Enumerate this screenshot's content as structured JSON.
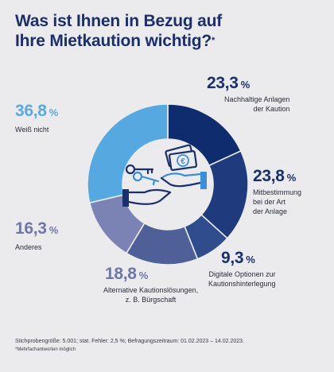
{
  "header": {
    "title_line1": "Was ist Ihnen in Bezug auf",
    "title_line2": "Ihre Mietkaution wichtig?",
    "title_mark": "*"
  },
  "chart_data": {
    "type": "pie",
    "donut": true,
    "categories": [
      "Nachhaltige Anlagen der Kaution",
      "Mitbestimmung bei der Art der Anlage",
      "Digitale Optionen zur Kautionshinterlegung",
      "Alternative Kautionslösungen, z. B. Bürgschaft",
      "Anderes",
      "Weiß nicht"
    ],
    "values": [
      23.3,
      23.8,
      9.3,
      18.8,
      16.3,
      36.8
    ],
    "colors": [
      "#0f2c6e",
      "#1f3b7d",
      "#2f4d8c",
      "#4f5f98",
      "#7a83b4",
      "#56a9e0"
    ],
    "unit": "%",
    "multiple_answers": true
  },
  "labels": [
    {
      "value": "23,3",
      "sign": "%",
      "desc": [
        "Nachhaltige Anlagen",
        "der Kaution"
      ]
    },
    {
      "value": "23,8",
      "sign": "%",
      "desc": [
        "Mitbestimmung",
        "bei der Art",
        "der Anlage"
      ]
    },
    {
      "value": "9,3",
      "sign": "%",
      "desc": [
        "Digitale Optionen zur",
        "Kautionshinterlegung"
      ]
    },
    {
      "value": "18,8",
      "sign": "%",
      "desc": [
        "Alternative Kautionslösungen,",
        "z. B. Bürgschaft"
      ]
    },
    {
      "value": "16,3",
      "sign": "%",
      "desc": [
        "Anderes"
      ]
    },
    {
      "value": "36,8",
      "sign": "%",
      "desc": [
        "Weiß nicht"
      ]
    }
  ],
  "label_colors": {
    "dark": "#1a2f6b",
    "light": "#5aa9dd",
    "mid": "#6f76a8"
  },
  "icon": {
    "currency_symbol": "€",
    "name": "keys-and-banknote-in-hand-icon"
  },
  "footer": {
    "line1": "Stichprobengröße: 5.001; stat. Fehler: 2,5 %; Befragungszeitraum: 01.02.2023 – 14.02.2023.",
    "line2": "*Mehrfachantworten möglich"
  }
}
